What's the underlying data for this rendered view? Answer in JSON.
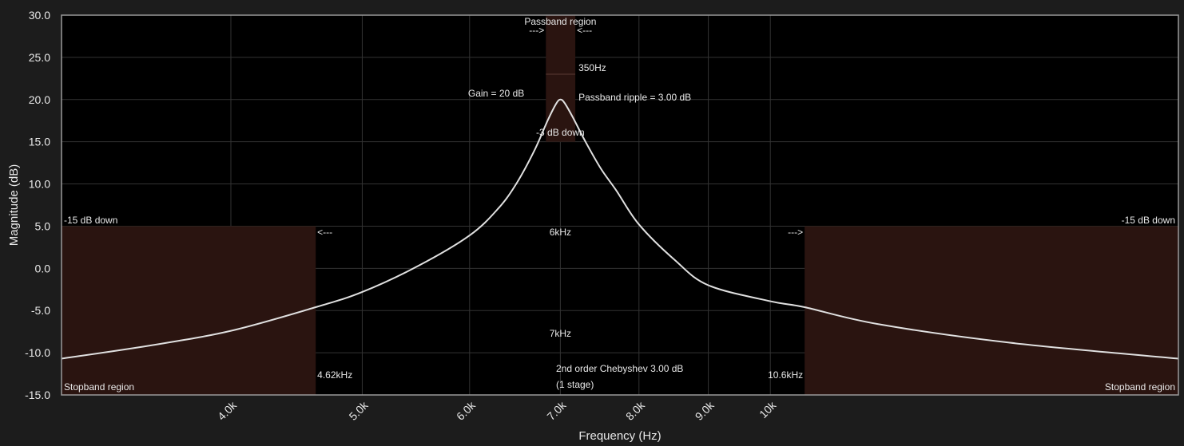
{
  "chart_data": {
    "type": "line",
    "title": "",
    "xlabel": "Frequency (Hz)",
    "ylabel": "Magnitude (dB)",
    "x_scale": "log",
    "xlim": [
      3000,
      20000
    ],
    "ylim": [
      -15,
      30
    ],
    "y_ticks": [
      "30.0",
      "25.0",
      "20.0",
      "15.0",
      "10.0",
      "5.0",
      "0.0",
      "-5.0",
      "-10.0",
      "-15.0"
    ],
    "x_ticks": [
      {
        "value": 4000,
        "label": "4.0k"
      },
      {
        "value": 5000,
        "label": "5.0k"
      },
      {
        "value": 6000,
        "label": "6.0k"
      },
      {
        "value": 7000,
        "label": "7.0k"
      },
      {
        "value": 8000,
        "label": "8.0k"
      },
      {
        "value": 9000,
        "label": "9.0k"
      },
      {
        "value": 10000,
        "label": "10k"
      }
    ],
    "grid": true,
    "series": [
      {
        "x": [
          3000,
          3500,
          4000,
          4620,
          5000,
          5500,
          6000,
          6300,
          6500,
          6700,
          6850,
          6950,
          7000,
          7050,
          7150,
          7300,
          7500,
          7700,
          8000,
          8500,
          9000,
          10000,
          10600,
          12000,
          15000,
          20000
        ],
        "y": [
          -10.7,
          -9.1,
          -7.4,
          -4.6,
          -2.8,
          0.3,
          3.9,
          7.1,
          10.1,
          14.0,
          17.5,
          19.5,
          20.0,
          19.6,
          17.9,
          15.1,
          11.8,
          9.2,
          5.2,
          1.0,
          -2.0,
          -3.9,
          -4.6,
          -6.6,
          -8.8,
          -10.7
        ],
        "color": "#e0e0e0"
      }
    ],
    "regions": [
      {
        "name": "stopband-left",
        "x": [
          3000,
          4620
        ],
        "y": [
          -15,
          5
        ],
        "label": "Stopband region",
        "edge_label": "4.62kHz",
        "down_label": "-15 dB down"
      },
      {
        "name": "passband",
        "x": [
          6830,
          7180
        ],
        "y": [
          15,
          30
        ],
        "label": "Passband region",
        "width_label": "350Hz"
      },
      {
        "name": "stopband-right",
        "x": [
          10600,
          20000
        ],
        "y": [
          -15,
          5
        ],
        "label": "Stopband region",
        "edge_label": "10.6kHz",
        "down_label": "-15 dB down"
      }
    ],
    "annotations": {
      "gain": "Gain = 20 dB",
      "ripple": "Passband ripple = 3.00 dB",
      "minus3": "-3 dB down",
      "bandwidth6": "6kHz",
      "center": "7kHz",
      "design_line1": "2nd order Chebyshev 3.00 dB",
      "design_line2": "(1 stage)",
      "arrow_left": "--->",
      "arrow_right": "<---"
    },
    "colors": {
      "background": "#1c1c1c",
      "plot_bg": "#000000",
      "grid": "#333333",
      "region_fill": "#2a1410",
      "curve": "#e0e0e0"
    }
  }
}
